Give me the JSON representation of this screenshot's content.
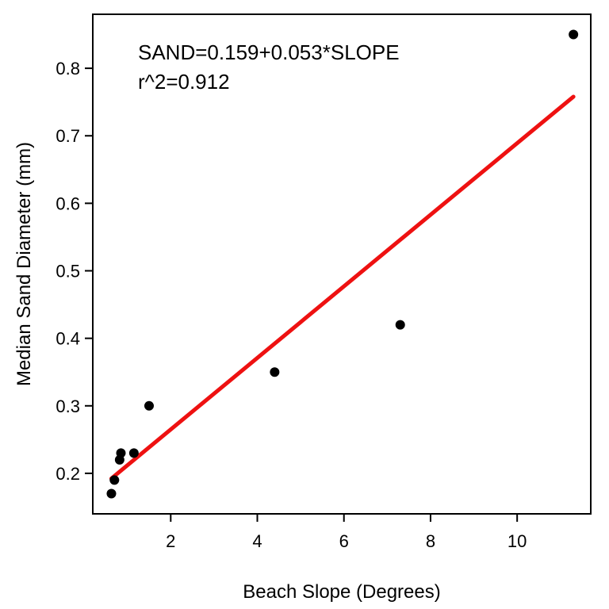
{
  "chart_data": {
    "type": "scatter",
    "xlabel": "Beach Slope (Degrees)",
    "ylabel": "Median Sand Diameter (mm)",
    "xlim": [
      0.2,
      11.7
    ],
    "ylim": [
      0.14,
      0.88
    ],
    "xticks": [
      2,
      4,
      6,
      8,
      10
    ],
    "yticks": [
      0.2,
      0.3,
      0.4,
      0.5,
      0.6,
      0.7,
      0.8
    ],
    "grid": false,
    "series": [
      {
        "points": [
          {
            "x": 0.63,
            "y": 0.17
          },
          {
            "x": 0.7,
            "y": 0.19
          },
          {
            "x": 0.82,
            "y": 0.22
          },
          {
            "x": 0.85,
            "y": 0.23
          },
          {
            "x": 1.15,
            "y": 0.23
          },
          {
            "x": 1.5,
            "y": 0.3
          },
          {
            "x": 4.4,
            "y": 0.35
          },
          {
            "x": 7.3,
            "y": 0.42
          },
          {
            "x": 11.3,
            "y": 0.85
          }
        ],
        "color": "#000000"
      }
    ],
    "fit_line": {
      "intercept": 0.159,
      "slope": 0.053,
      "x_range": [
        0.63,
        11.3
      ],
      "color": "#ee1111"
    },
    "annotations": [
      "SAND=0.159+0.053*SLOPE",
      "r^2=0.912"
    ]
  }
}
